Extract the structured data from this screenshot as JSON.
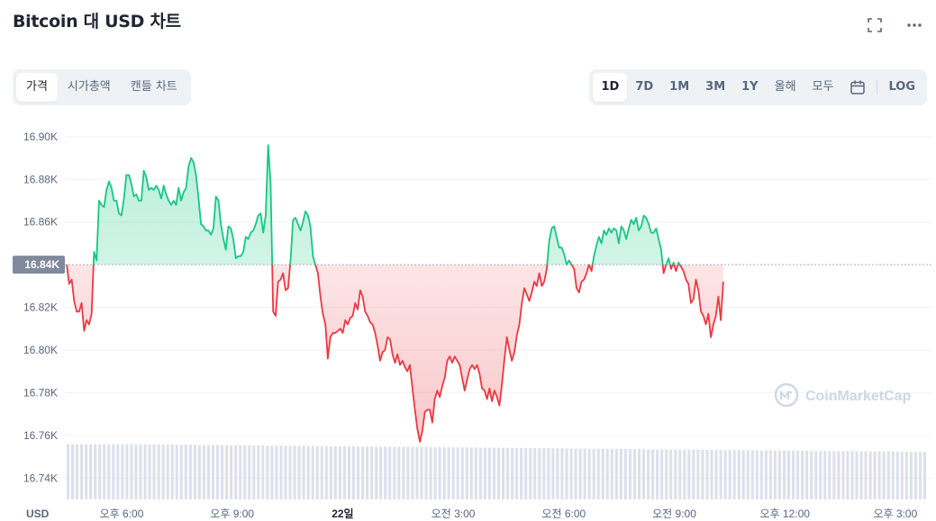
{
  "header": {
    "title": "Bitcoin 대 USD 차트",
    "expand_icon": "expand-icon",
    "more_icon": "more-horizontal-icon"
  },
  "view_tabs": [
    {
      "label": "가격",
      "active": true
    },
    {
      "label": "시가총액",
      "active": false
    },
    {
      "label": "캔들 차트",
      "active": false
    }
  ],
  "range_tabs": [
    {
      "label": "1D",
      "active": true
    },
    {
      "label": "7D",
      "active": false
    },
    {
      "label": "1M",
      "active": false
    },
    {
      "label": "3M",
      "active": false
    },
    {
      "label": "1Y",
      "active": false
    },
    {
      "label": "올해",
      "active": false
    },
    {
      "label": "모두",
      "active": false
    }
  ],
  "calendar_icon": "calendar-icon",
  "log_label": "LOG",
  "watermark": "CoinMarketCap",
  "colors": {
    "up": "#16c784",
    "down": "#ea3943",
    "volume": "#cfd6e4",
    "grid": "#eff2f5",
    "axis_text": "#58667e",
    "ref_badge": "#808a9d"
  },
  "chart_data": {
    "type": "line",
    "currency_label": "USD",
    "reference_price": 16.84,
    "reference_label": "16.84K",
    "ylim": [
      16.73,
      16.905
    ],
    "yticks": [
      {
        "value": 16.9,
        "label": "16.90K"
      },
      {
        "value": 16.88,
        "label": "16.88K"
      },
      {
        "value": 16.86,
        "label": "16.86K"
      },
      {
        "value": 16.82,
        "label": "16.82K"
      },
      {
        "value": 16.8,
        "label": "16.80K"
      },
      {
        "value": 16.78,
        "label": "16.78K"
      },
      {
        "value": 16.76,
        "label": "16.76K"
      },
      {
        "value": 16.74,
        "label": "16.74K"
      }
    ],
    "xticks": [
      {
        "label": "오후 6:00",
        "bold": false
      },
      {
        "label": "오후 9:00",
        "bold": false
      },
      {
        "label": "22일",
        "bold": true
      },
      {
        "label": "오전 3:00",
        "bold": false
      },
      {
        "label": "오전 6:00",
        "bold": false
      },
      {
        "label": "오전 9:00",
        "bold": false
      },
      {
        "label": "오후 12:00",
        "bold": false
      },
      {
        "label": "오후 3:00",
        "bold": false
      }
    ],
    "x_unit": "hours since first xtick",
    "x_start": -1.49,
    "x_step": 0.0675,
    "price": [
      16.84,
      16.831,
      16.833,
      16.823,
      16.818,
      16.818,
      16.822,
      16.809,
      16.814,
      16.812,
      16.817,
      16.846,
      16.842,
      16.87,
      16.868,
      16.867,
      16.875,
      16.879,
      16.876,
      16.87,
      16.87,
      16.864,
      16.863,
      16.871,
      16.882,
      16.882,
      16.878,
      16.872,
      16.873,
      16.87,
      16.87,
      16.884,
      16.881,
      16.875,
      16.876,
      16.875,
      16.877,
      16.875,
      16.871,
      16.877,
      16.873,
      16.87,
      16.868,
      16.87,
      16.868,
      16.876,
      16.87,
      16.874,
      16.876,
      16.886,
      16.89,
      16.888,
      16.882,
      16.871,
      16.859,
      16.858,
      16.856,
      16.856,
      16.854,
      16.857,
      16.872,
      16.87,
      16.859,
      16.852,
      16.847,
      16.858,
      16.857,
      16.852,
      16.843,
      16.844,
      16.844,
      16.846,
      16.853,
      16.852,
      16.855,
      16.856,
      16.859,
      16.863,
      16.864,
      16.855,
      16.863,
      16.896,
      16.878,
      16.818,
      16.816,
      16.832,
      16.833,
      16.836,
      16.828,
      16.829,
      16.842,
      16.861,
      16.862,
      16.859,
      16.856,
      16.86,
      16.865,
      16.863,
      16.858,
      16.844,
      16.84,
      16.836,
      16.825,
      16.817,
      16.812,
      16.796,
      16.806,
      16.808,
      16.808,
      16.809,
      16.81,
      16.808,
      16.814,
      16.812,
      16.815,
      16.816,
      16.822,
      16.819,
      16.828,
      16.825,
      16.818,
      16.816,
      16.813,
      16.812,
      16.808,
      16.802,
      16.795,
      16.799,
      16.8,
      16.806,
      16.805,
      16.798,
      16.794,
      16.798,
      16.793,
      16.795,
      16.792,
      16.79,
      16.793,
      16.782,
      16.772,
      16.763,
      16.757,
      16.762,
      16.771,
      16.772,
      16.772,
      16.766,
      16.777,
      16.781,
      16.778,
      16.783,
      16.787,
      16.795,
      16.797,
      16.794,
      16.797,
      16.795,
      16.793,
      16.787,
      16.781,
      16.786,
      16.791,
      16.793,
      16.791,
      16.793,
      16.789,
      16.782,
      16.781,
      16.777,
      16.782,
      16.776,
      16.781,
      16.778,
      16.774,
      16.784,
      16.796,
      16.806,
      16.8,
      16.795,
      16.799,
      16.807,
      16.812,
      16.822,
      16.829,
      16.826,
      16.823,
      16.827,
      16.832,
      16.83,
      16.836,
      16.83,
      16.832,
      16.838,
      16.851,
      16.857,
      16.858,
      16.853,
      16.848,
      16.848,
      16.845,
      16.84,
      16.842,
      16.84,
      16.838,
      16.829,
      16.827,
      16.832,
      16.833,
      16.836,
      16.84,
      16.837,
      16.844,
      16.849,
      16.853,
      16.85,
      16.856,
      16.854,
      16.857,
      16.855,
      16.857,
      16.856,
      16.85,
      16.858,
      16.856,
      16.852,
      16.857,
      16.861,
      16.859,
      16.862,
      16.856,
      16.858,
      16.863,
      16.862,
      16.859,
      16.855,
      16.855,
      16.857,
      16.852,
      16.847,
      16.836,
      16.84,
      16.843,
      16.838,
      16.841,
      16.837,
      16.841,
      16.839,
      16.837,
      16.833,
      16.831,
      16.822,
      16.824,
      16.833,
      16.828,
      16.818,
      16.816,
      16.812,
      16.817,
      16.806,
      16.812,
      16.816,
      16.825,
      16.814,
      16.832
    ],
    "volume_level": [
      0.93,
      0.93,
      0.92,
      0.91,
      0.9,
      0.89,
      0.88,
      0.87,
      0.86,
      0.85,
      0.84,
      0.83,
      0.82,
      0.81,
      0.8
    ]
  }
}
